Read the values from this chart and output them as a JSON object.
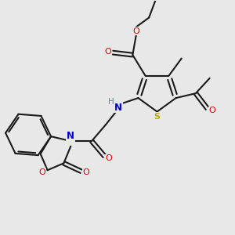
{
  "bg_color": "#e8e8e8",
  "bond_color": "#1a1a1a",
  "colors": {
    "O": "#dd0000",
    "N": "#0000cc",
    "S": "#bbaa00",
    "H": "#5a8a8a"
  },
  "lw_single": 1.5,
  "lw_double": 1.5
}
